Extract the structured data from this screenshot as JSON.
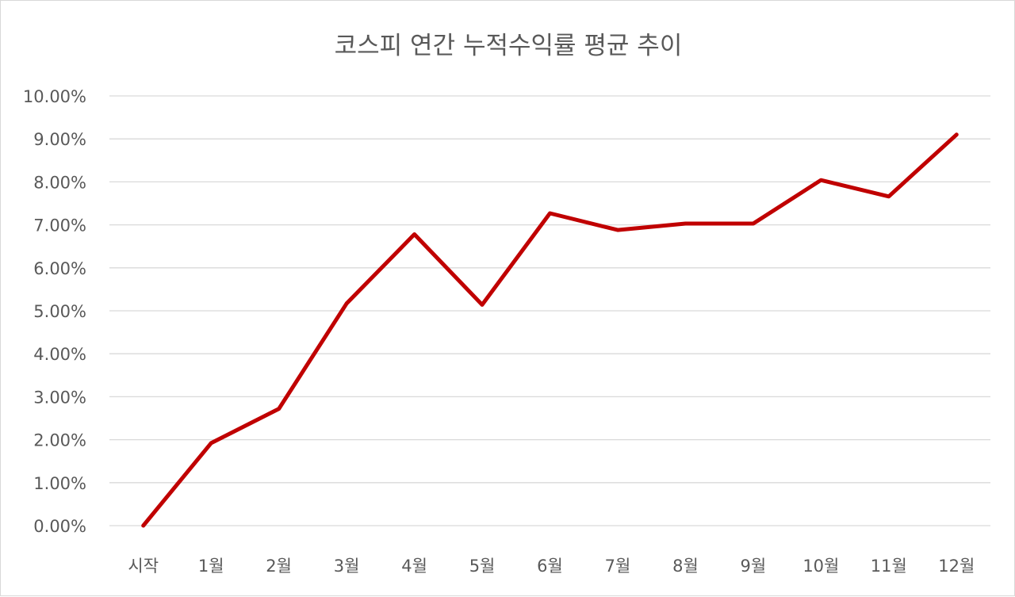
{
  "chart_data": {
    "type": "line",
    "title": "코스피  연간 누적수익률 평균 추이",
    "xlabel": "",
    "ylabel": "",
    "categories": [
      "시작",
      "1월",
      "2월",
      "3월",
      "4월",
      "5월",
      "6월",
      "7월",
      "8월",
      "9월",
      "10월",
      "11월",
      "12월"
    ],
    "series": [
      {
        "values": [
          0.0,
          1.92,
          2.72,
          5.17,
          6.78,
          5.14,
          7.27,
          6.88,
          7.03,
          7.03,
          8.04,
          7.66,
          9.1
        ],
        "color": "#c00000"
      }
    ],
    "ylim": [
      0,
      10
    ],
    "ytick_step": 1,
    "ytick_labels": [
      "0.00%",
      "1.00%",
      "2.00%",
      "3.00%",
      "4.00%",
      "5.00%",
      "6.00%",
      "7.00%",
      "8.00%",
      "9.00%",
      "10.00%"
    ],
    "grid": true,
    "legend": "none"
  }
}
